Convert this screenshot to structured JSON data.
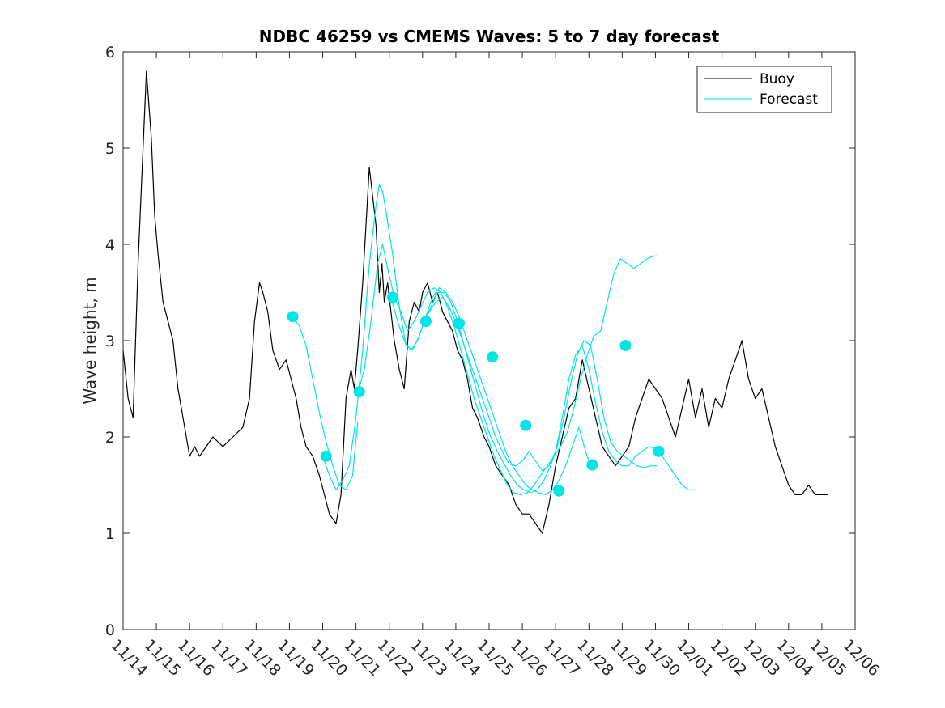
{
  "chart_data": {
    "type": "line",
    "title": "NDBC 46259 vs CMEMS Waves: 5 to 7 day forecast",
    "xlabel": "",
    "ylabel": "Wave height, m",
    "ylim": [
      0,
      6
    ],
    "yticks": [
      "0",
      "1",
      "2",
      "3",
      "4",
      "5",
      "6"
    ],
    "xlim": [
      0,
      22
    ],
    "xticks": [
      "11/14",
      "11/15",
      "11/16",
      "11/17",
      "11/18",
      "11/19",
      "11/20",
      "11/21",
      "11/22",
      "11/23",
      "11/24",
      "11/25",
      "11/26",
      "11/27",
      "11/28",
      "11/29",
      "11/30",
      "12/01",
      "12/02",
      "12/03",
      "12/04",
      "12/05",
      "12/06"
    ],
    "x_units": "days since 11/14 00:00",
    "grid": false,
    "legend": {
      "location": "top-right",
      "entries": [
        {
          "name": "Buoy",
          "color": "#000000"
        },
        {
          "name": "Forecast",
          "color": "#00e5e5"
        }
      ]
    },
    "colors": {
      "buoy": "#000000",
      "forecast": "#00e5e5",
      "markers": "#00e5e5"
    },
    "series": [
      {
        "name": "Buoy",
        "color": "#000000",
        "x": [
          0.0,
          0.15,
          0.3,
          0.45,
          0.55,
          0.7,
          0.85,
          0.95,
          1.05,
          1.2,
          1.35,
          1.5,
          1.65,
          1.8,
          2.0,
          2.15,
          2.3,
          2.5,
          2.7,
          3.0,
          3.3,
          3.6,
          3.8,
          3.95,
          4.1,
          4.2,
          4.35,
          4.5,
          4.7,
          4.9,
          5.05,
          5.2,
          5.35,
          5.5,
          5.7,
          5.9,
          6.05,
          6.2,
          6.4,
          6.55,
          6.7,
          6.85,
          6.95,
          7.05,
          7.2,
          7.4,
          7.6,
          7.7,
          7.78,
          7.85,
          7.95,
          8.05,
          8.15,
          8.3,
          8.45,
          8.6,
          8.75,
          8.9,
          9.0,
          9.15,
          9.3,
          9.45,
          9.6,
          9.75,
          9.9,
          10.05,
          10.2,
          10.35,
          10.5,
          10.65,
          10.85,
          11.0,
          11.2,
          11.4,
          11.6,
          11.8,
          12.0,
          12.2,
          12.4,
          12.6,
          12.8,
          13.0,
          13.2,
          13.4,
          13.6,
          13.8,
          14.0,
          14.2,
          14.4,
          14.6,
          14.8,
          15.0,
          15.2,
          15.4,
          15.6,
          15.8,
          16.0,
          16.2,
          16.4,
          16.6,
          16.8,
          17.0,
          17.2,
          17.4,
          17.6,
          17.8,
          18.0,
          18.2,
          18.4,
          18.6,
          18.8,
          19.0,
          19.2,
          19.4,
          19.6,
          19.8,
          20.0,
          20.2,
          20.4,
          20.6,
          20.8,
          21.0,
          21.2
        ],
        "y": [
          2.9,
          2.4,
          2.2,
          3.8,
          4.6,
          5.8,
          5.1,
          4.3,
          3.9,
          3.4,
          3.2,
          3.0,
          2.5,
          2.2,
          1.8,
          1.9,
          1.8,
          1.9,
          2.0,
          1.9,
          2.0,
          2.1,
          2.4,
          3.2,
          3.6,
          3.5,
          3.3,
          2.9,
          2.7,
          2.8,
          2.6,
          2.4,
          2.1,
          1.9,
          1.8,
          1.6,
          1.4,
          1.2,
          1.1,
          1.4,
          2.4,
          2.7,
          2.5,
          2.9,
          3.6,
          4.8,
          4.2,
          3.5,
          3.8,
          3.4,
          3.6,
          3.3,
          3.0,
          2.7,
          2.5,
          3.2,
          3.4,
          3.3,
          3.5,
          3.6,
          3.4,
          3.5,
          3.3,
          3.2,
          3.1,
          2.9,
          2.8,
          2.6,
          2.3,
          2.2,
          2.0,
          1.9,
          1.7,
          1.6,
          1.5,
          1.3,
          1.2,
          1.2,
          1.1,
          1.0,
          1.3,
          1.7,
          2.0,
          2.3,
          2.4,
          2.8,
          2.5,
          2.2,
          1.9,
          1.8,
          1.7,
          1.8,
          1.9,
          2.2,
          2.4,
          2.6,
          2.5,
          2.4,
          2.2,
          2.0,
          2.3,
          2.6,
          2.2,
          2.5,
          2.1,
          2.4,
          2.3,
          2.6,
          2.8,
          3.0,
          2.6,
          2.4,
          2.5,
          2.2,
          1.9,
          1.7,
          1.5,
          1.4,
          1.4,
          1.5,
          1.4,
          1.4,
          1.4
        ]
      },
      {
        "name": "Forecast",
        "color": "#00e5e5",
        "segments": [
          {
            "x": [
              5.1,
              5.3,
              5.5,
              5.7,
              5.9,
              6.1,
              6.3,
              6.5,
              6.7,
              6.9,
              7.05
            ],
            "y": [
              3.25,
              3.15,
              2.95,
              2.6,
              2.25,
              1.95,
              1.7,
              1.5,
              1.45,
              1.6,
              2.15
            ]
          },
          {
            "x": [
              6.05,
              6.2,
              6.4,
              6.6,
              6.8,
              7.0,
              7.2,
              7.4,
              7.6,
              7.7,
              7.8,
              7.9,
              8.1,
              8.3,
              8.5,
              8.7,
              8.9,
              9.1,
              9.3,
              9.5,
              9.7,
              9.9,
              10.1,
              10.3,
              10.5,
              10.7,
              10.9,
              11.1,
              11.3,
              11.5,
              11.7,
              11.9,
              12.1,
              12.3,
              12.5,
              12.7,
              12.9,
              13.1,
              13.3,
              13.5,
              13.7,
              13.9,
              14.05
            ],
            "y": [
              1.75,
              1.6,
              1.45,
              1.55,
              1.7,
              2.2,
              2.9,
              3.8,
              4.4,
              4.62,
              4.55,
              4.35,
              3.9,
              3.35,
              2.95,
              2.9,
              3.05,
              3.25,
              3.45,
              3.55,
              3.5,
              3.4,
              3.25,
              3.05,
              2.85,
              2.65,
              2.45,
              2.25,
              2.05,
              1.85,
              1.7,
              1.6,
              1.5,
              1.45,
              1.42,
              1.4,
              1.45,
              1.55,
              1.7,
              1.9,
              2.1,
              1.85,
              1.7
            ]
          },
          {
            "x": [
              7.05,
              7.25,
              7.45,
              7.65,
              7.8,
              7.95,
              8.15,
              8.35,
              8.55,
              8.75,
              8.95,
              9.15,
              9.35,
              9.55,
              9.75,
              9.95,
              10.15,
              10.35,
              10.55,
              10.75,
              10.95,
              11.15,
              11.35,
              11.55,
              11.75,
              11.95,
              12.15,
              12.35,
              12.55,
              12.75,
              12.95,
              13.15,
              13.35,
              13.55,
              13.75,
              13.95,
              14.15,
              14.35,
              14.55,
              14.75,
              14.95,
              15.15,
              15.35,
              15.55,
              15.75,
              15.95,
              16.05
            ],
            "y": [
              2.45,
              2.7,
              3.2,
              3.8,
              4.0,
              3.75,
              3.45,
              3.3,
              3.1,
              3.2,
              3.35,
              3.5,
              3.55,
              3.5,
              3.35,
              3.15,
              2.9,
              2.65,
              2.4,
              2.2,
              2.0,
              1.8,
              1.65,
              1.5,
              1.42,
              1.4,
              1.42,
              1.5,
              1.6,
              1.7,
              1.8,
              1.9,
              2.05,
              2.3,
              2.6,
              2.85,
              3.05,
              3.1,
              3.4,
              3.7,
              3.85,
              3.8,
              3.75,
              3.8,
              3.85,
              3.88,
              3.88
            ]
          },
          {
            "x": [
              8.05,
              8.25,
              8.45,
              8.65,
              8.85,
              9.05,
              9.25,
              9.45,
              9.65,
              9.85,
              10.05,
              10.25,
              10.45,
              10.65,
              10.85,
              11.05,
              11.25,
              11.45,
              11.65,
              11.85,
              12.05,
              12.25,
              12.45,
              12.65,
              12.85,
              13.05,
              13.25,
              13.45,
              13.65,
              13.85,
              14.05,
              14.25,
              14.45,
              14.65,
              14.85,
              15.05,
              15.25,
              15.45,
              15.65,
              15.85,
              16.05
            ],
            "y": [
              3.45,
              3.2,
              3.0,
              2.9,
              3.0,
              3.2,
              3.35,
              3.5,
              3.5,
              3.4,
              3.2,
              2.95,
              2.7,
              2.45,
              2.2,
              2.0,
              1.85,
              1.72,
              1.6,
              1.5,
              1.45,
              1.42,
              1.45,
              1.55,
              1.7,
              1.9,
              2.2,
              2.55,
              2.85,
              3.0,
              2.95,
              2.6,
              2.2,
              1.95,
              1.85,
              1.8,
              1.75,
              1.7,
              1.68,
              1.7,
              1.7
            ]
          },
          {
            "x": [
              9.05,
              9.2,
              9.4,
              9.6,
              9.8,
              10.0,
              10.2,
              10.4,
              10.6,
              10.8,
              11.0,
              11.2,
              11.4,
              11.6,
              11.8,
              12.0,
              12.2,
              12.4,
              12.6,
              12.8,
              13.0,
              13.2,
              13.4,
              13.6,
              13.8,
              14.0,
              14.2,
              14.4,
              14.6,
              14.8,
              15.0,
              15.2,
              15.4,
              15.6,
              15.8,
              16.0,
              16.2,
              16.4,
              16.6,
              16.8,
              17.0,
              17.2
            ],
            "y": [
              3.2,
              3.3,
              3.4,
              3.45,
              3.35,
              3.2,
              3.0,
              2.8,
              2.6,
              2.4,
              2.2,
              2.0,
              1.85,
              1.72,
              1.7,
              1.75,
              1.85,
              1.75,
              1.65,
              1.7,
              1.85,
              2.2,
              2.6,
              2.85,
              2.95,
              2.7,
              2.35,
              2.05,
              1.85,
              1.75,
              1.7,
              1.7,
              1.8,
              1.85,
              1.9,
              1.88,
              1.8,
              1.7,
              1.6,
              1.5,
              1.45,
              1.45
            ]
          }
        ]
      }
    ],
    "markers": {
      "color": "#00e5e5",
      "x": [
        5.1,
        6.1,
        7.1,
        8.1,
        9.1,
        10.1,
        11.1,
        12.1,
        13.1,
        14.1,
        15.1,
        16.1
      ],
      "y": [
        3.25,
        1.8,
        2.47,
        3.45,
        3.2,
        3.18,
        2.83,
        2.12,
        1.44,
        1.71,
        2.95,
        1.85
      ]
    }
  }
}
